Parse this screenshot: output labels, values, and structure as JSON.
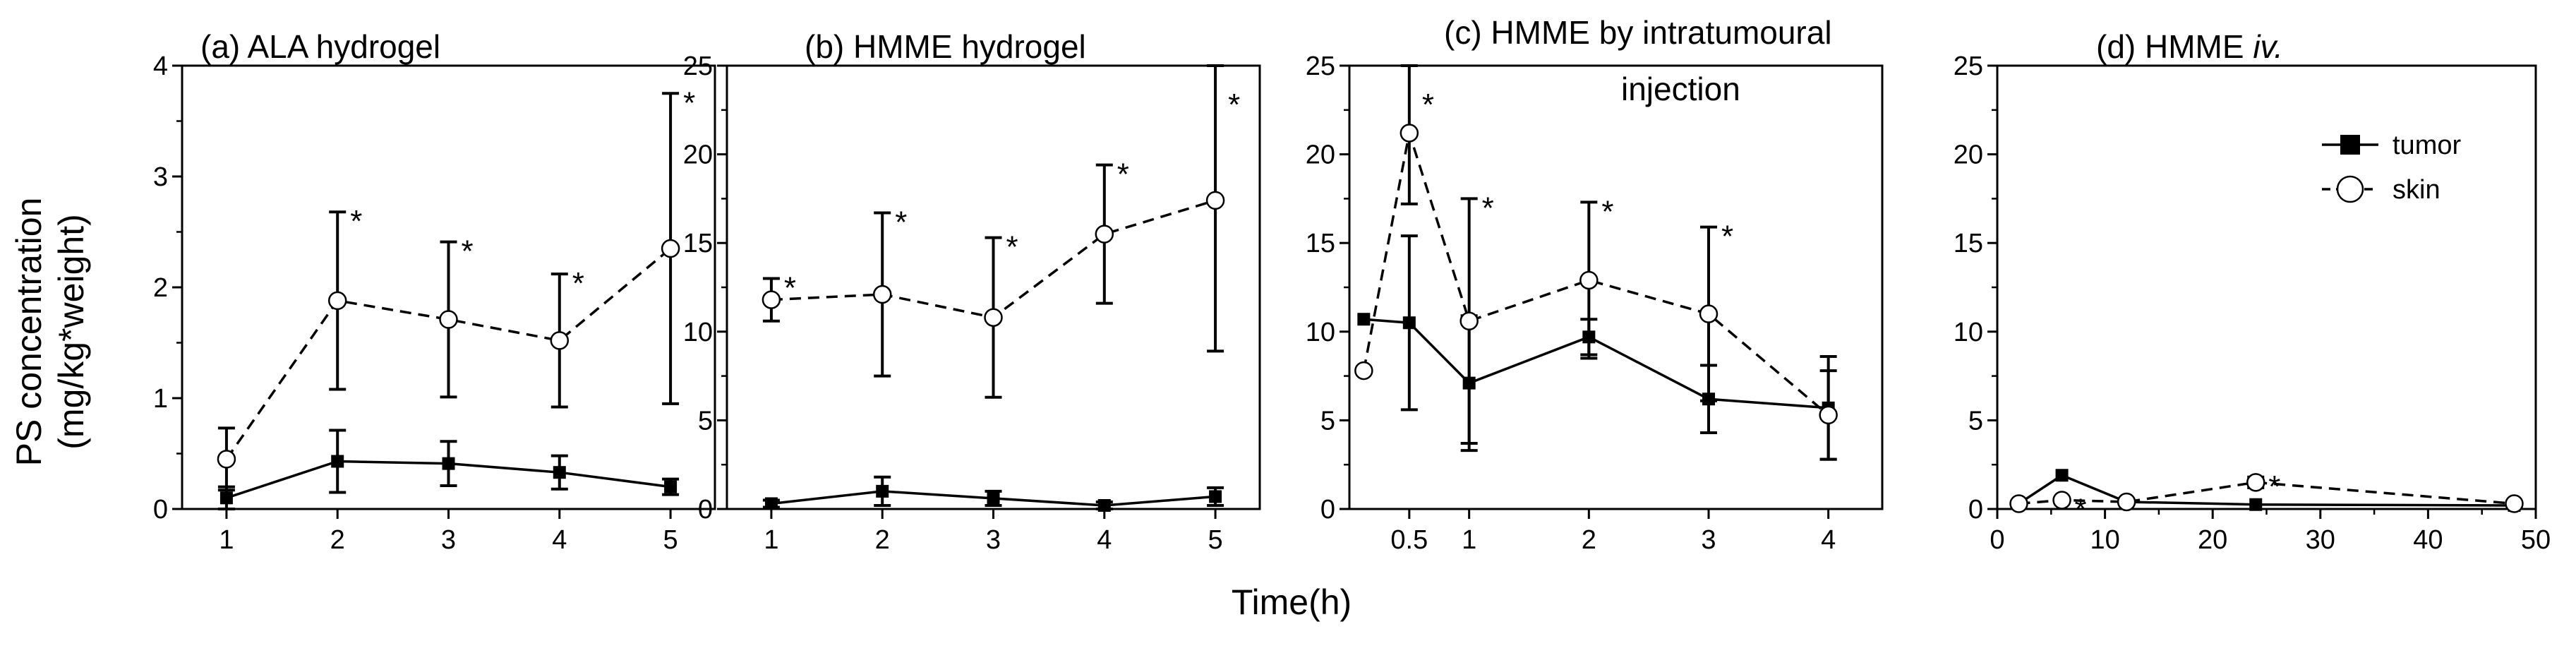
{
  "figure": {
    "ylabel_line1": "PS concentration",
    "ylabel_line2": "(mg/kg*weight)",
    "xlabel": "Time(h)"
  },
  "legend": {
    "tumor": "tumor",
    "skin": "skin"
  },
  "chart_data": [
    {
      "type": "line",
      "title": "(a) ALA hydrogel",
      "x_ticks": [
        1,
        2,
        3,
        4,
        5
      ],
      "x_tick_labels": [
        "1",
        "2",
        "3",
        "4",
        "5"
      ],
      "y_ticks": [
        0,
        1,
        2,
        3,
        4
      ],
      "y_tick_labels": [
        "0",
        "1",
        "2",
        "3",
        "4"
      ],
      "xlim": [
        0.6,
        5.4
      ],
      "ylim": [
        0,
        4
      ],
      "series": [
        {
          "name": "tumor",
          "marker": "filled-square",
          "line": "solid",
          "x": [
            1,
            2,
            3,
            4,
            5
          ],
          "y": [
            0.1,
            0.43,
            0.41,
            0.33,
            0.2
          ],
          "err": [
            0.1,
            0.28,
            0.2,
            0.15,
            0.07
          ]
        },
        {
          "name": "skin",
          "marker": "open-circle",
          "line": "dashed",
          "x": [
            1,
            2,
            3,
            4,
            5
          ],
          "y": [
            0.45,
            1.88,
            1.71,
            1.52,
            2.35
          ],
          "err": [
            0.28,
            0.8,
            0.7,
            0.6,
            1.4
          ]
        }
      ],
      "significance": [
        "",
        "*",
        "*",
        "*",
        "*"
      ]
    },
    {
      "type": "line",
      "title": "(b) HMME hydrogel",
      "x_ticks": [
        1,
        2,
        3,
        4,
        5
      ],
      "x_tick_labels": [
        "1",
        "2",
        "3",
        "4",
        "5"
      ],
      "y_ticks": [
        0,
        5,
        10,
        15,
        20,
        25
      ],
      "y_tick_labels": [
        "0",
        "5",
        "10",
        "15",
        "20",
        "25"
      ],
      "xlim": [
        0.6,
        5.4
      ],
      "ylim": [
        0,
        25
      ],
      "series": [
        {
          "name": "tumor",
          "marker": "filled-square",
          "line": "solid",
          "x": [
            1,
            2,
            3,
            4,
            5
          ],
          "y": [
            0.3,
            1.0,
            0.6,
            0.2,
            0.7
          ],
          "err": [
            0.2,
            0.8,
            0.4,
            0.2,
            0.5
          ]
        },
        {
          "name": "skin",
          "marker": "open-circle",
          "line": "dashed",
          "x": [
            1,
            2,
            3,
            4,
            5
          ],
          "y": [
            11.8,
            12.1,
            10.8,
            15.5,
            17.4
          ],
          "err": [
            1.2,
            4.6,
            4.5,
            3.9,
            8.5
          ]
        }
      ],
      "significance": [
        "*",
        "*",
        "*",
        "*",
        "*"
      ]
    },
    {
      "type": "line",
      "title": "(c) HMME by intratumoural",
      "title2": "injection",
      "x_ticks": [
        0.5,
        1,
        2,
        3,
        4
      ],
      "x_tick_labels": [
        "0.5",
        "1",
        "2",
        "3",
        "4"
      ],
      "x_positions": [
        0.17,
        0.5,
        1,
        2,
        3,
        4
      ],
      "x_display": [
        0.12,
        0.5,
        1,
        2,
        3,
        4
      ],
      "y_ticks": [
        0,
        5,
        10,
        15,
        20,
        25
      ],
      "y_tick_labels": [
        "0",
        "5",
        "10",
        "15",
        "20",
        "25"
      ],
      "xlim": [
        0,
        4.45
      ],
      "ylim": [
        0,
        25
      ],
      "series": [
        {
          "name": "tumor",
          "marker": "filled-square",
          "line": "solid",
          "x": [
            0.17,
            0.5,
            1,
            2,
            3,
            4
          ],
          "y": [
            10.7,
            10.5,
            7.1,
            9.7,
            6.2,
            5.7
          ],
          "err": [
            0,
            4.9,
            3.8,
            1.0,
            1.9,
            2.9
          ]
        },
        {
          "name": "skin",
          "marker": "open-circle",
          "line": "dashed",
          "x": [
            0.17,
            0.5,
            1,
            2,
            3,
            4
          ],
          "y": [
            7.8,
            21.2,
            10.6,
            12.9,
            11.0,
            5.3
          ],
          "err": [
            0,
            4.0,
            6.9,
            4.4,
            4.9,
            2.5
          ]
        }
      ],
      "significance": [
        "",
        "*",
        "*",
        "*",
        "*",
        ""
      ]
    },
    {
      "type": "line",
      "title": "(d) HMME ",
      "title_italic": "iv.",
      "x_ticks": [
        0,
        10,
        20,
        30,
        40,
        50
      ],
      "x_tick_labels": [
        "0",
        "10",
        "20",
        "30",
        "40",
        "50"
      ],
      "y_ticks": [
        0,
        5,
        10,
        15,
        20,
        25
      ],
      "y_tick_labels": [
        "0",
        "5",
        "10",
        "15",
        "20",
        "25"
      ],
      "xlim": [
        0,
        50
      ],
      "ylim": [
        0,
        25
      ],
      "series": [
        {
          "name": "tumor",
          "marker": "filled-square",
          "line": "solid",
          "x": [
            2,
            6,
            12,
            24,
            48
          ],
          "y": [
            0.3,
            1.9,
            0.4,
            0.25,
            0.2
          ],
          "err": [
            0,
            0,
            0,
            0,
            0
          ]
        },
        {
          "name": "skin",
          "marker": "open-circle",
          "line": "dashed",
          "x": [
            2,
            6,
            12,
            24,
            48
          ],
          "y": [
            0.3,
            0.5,
            0.4,
            1.5,
            0.3
          ],
          "err": [
            0,
            0,
            0,
            0.3,
            0
          ]
        }
      ],
      "significance": [
        "",
        "*",
        "",
        "*",
        ""
      ]
    }
  ]
}
